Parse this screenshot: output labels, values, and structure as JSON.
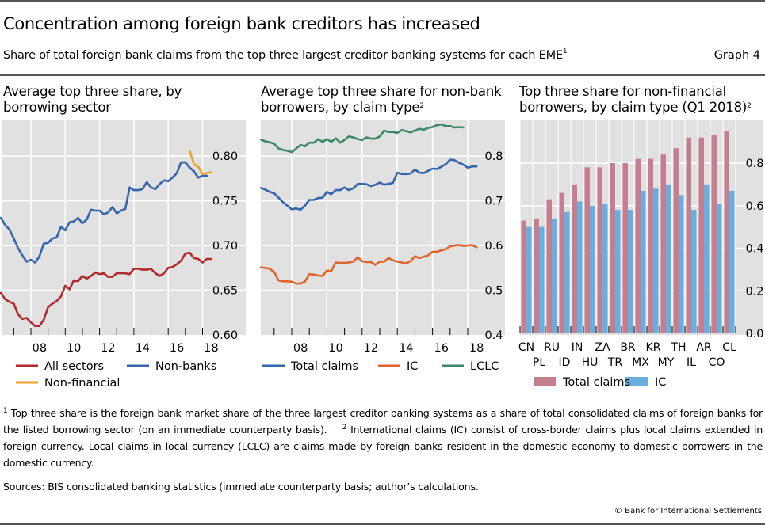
{
  "header": {
    "title": "Concentration among foreign bank creditors has increased",
    "subtitle": "Share of total foreign bank claims from the top three largest creditor banking systems for each EME",
    "subtitle_note": "1",
    "graph_number": "Graph 4"
  },
  "footnotes": {
    "note1_mark": "1",
    "note1": "Top three share is the foreign bank market share of the three largest creditor banking systems as a share of total consolidated claims of foreign banks for the listed borrowing sector (on an immediate counterparty basis).",
    "note2_mark": "2",
    "note2": "International claims (IC) consist of cross-border claims plus local claims extended in foreign currency. Local claims in local currency (LCLC) are claims made by foreign banks resident in the domestic economy to domestic borrowers in the domestic currency.",
    "sources": "Sources: BIS consolidated banking statistics (immediate counterparty basis; author’s calculations.",
    "copyright": "© Bank for International Settlements"
  },
  "colors": {
    "plot_bg": "#e1e1e1",
    "grid": "#ffffff",
    "red": "#b2292e",
    "blue": "#3565ad",
    "orange_yellow": "#eca125",
    "orange": "#e0642a",
    "green": "#3b8767",
    "bar_total": "#c47e8e",
    "bar_ic": "#6aaee0"
  },
  "chart_data": [
    {
      "type": "line",
      "title": "Average top three share, by borrowing sector",
      "x_start": 2006.25,
      "x_step": 0.25,
      "xlim": [
        2006.25,
        2018.75
      ],
      "x_ticklabels": [
        "08",
        "10",
        "12",
        "14",
        "16",
        "18"
      ],
      "x_tick_years": [
        2008,
        2010,
        2012,
        2014,
        2016,
        2018
      ],
      "ylim": [
        0.6,
        0.84
      ],
      "y_ticks": [
        0.6,
        0.65,
        0.7,
        0.75,
        0.8
      ],
      "y_ticklabels": [
        "0.60",
        "0.65",
        "0.70",
        "0.75",
        "0.80"
      ],
      "grid": true,
      "legend_position": "bottom",
      "series": [
        {
          "name": "All sectors",
          "color_key": "red",
          "start": 2006.25,
          "values": [
            0.647,
            0.64,
            0.637,
            0.635,
            0.623,
            0.618,
            0.619,
            0.614,
            0.61,
            0.61,
            0.617,
            0.631,
            0.635,
            0.638,
            0.643,
            0.655,
            0.651,
            0.661,
            0.66,
            0.666,
            0.663,
            0.666,
            0.67,
            0.668,
            0.669,
            0.665,
            0.665,
            0.669,
            0.669,
            0.669,
            0.668,
            0.674,
            0.674,
            0.673,
            0.673,
            0.674,
            0.669,
            0.666,
            0.669,
            0.675,
            0.676,
            0.679,
            0.683,
            0.691,
            0.692,
            0.686,
            0.685,
            0.681,
            0.685,
            0.685
          ]
        },
        {
          "name": "Non-banks",
          "color_key": "blue",
          "start": 2006.25,
          "values": [
            0.731,
            0.723,
            0.718,
            0.708,
            0.697,
            0.689,
            0.682,
            0.684,
            0.681,
            0.688,
            0.702,
            0.703,
            0.708,
            0.709,
            0.721,
            0.717,
            0.726,
            0.727,
            0.731,
            0.725,
            0.729,
            0.74,
            0.739,
            0.739,
            0.735,
            0.737,
            0.743,
            0.736,
            0.739,
            0.741,
            0.765,
            0.762,
            0.762,
            0.763,
            0.771,
            0.765,
            0.763,
            0.769,
            0.773,
            0.772,
            0.776,
            0.781,
            0.793,
            0.793,
            0.787,
            0.783,
            0.776,
            0.778,
            0.778
          ]
        },
        {
          "name": "Non-financial",
          "color_key": "orange_yellow",
          "start": 2017.25,
          "values": [
            0.806,
            0.791,
            0.788,
            0.78,
            0.781,
            0.782
          ]
        }
      ]
    },
    {
      "type": "line",
      "title": "Average top three share for non-bank borrowers, by claim type",
      "title_note": "2",
      "x_start": 2006.25,
      "x_step": 0.25,
      "xlim": [
        2006.25,
        2018.75
      ],
      "x_ticklabels": [
        "08",
        "10",
        "12",
        "14",
        "16",
        "18"
      ],
      "x_tick_years": [
        2008,
        2010,
        2012,
        2014,
        2016,
        2018
      ],
      "ylim": [
        0.4,
        0.88
      ],
      "y_ticks": [
        0.4,
        0.5,
        0.6,
        0.7,
        0.8
      ],
      "y_ticklabels": [
        "0.4",
        "0.5",
        "0.6",
        "0.7",
        "0.8"
      ],
      "grid": true,
      "legend_position": "bottom",
      "series": [
        {
          "name": "Total claims",
          "color_key": "blue",
          "start": 2006.25,
          "values": [
            0.729,
            0.725,
            0.72,
            0.717,
            0.707,
            0.697,
            0.689,
            0.681,
            0.683,
            0.68,
            0.689,
            0.702,
            0.702,
            0.706,
            0.707,
            0.72,
            0.715,
            0.724,
            0.724,
            0.73,
            0.724,
            0.728,
            0.738,
            0.738,
            0.737,
            0.733,
            0.736,
            0.741,
            0.736,
            0.738,
            0.74,
            0.763,
            0.76,
            0.76,
            0.761,
            0.77,
            0.763,
            0.762,
            0.767,
            0.772,
            0.771,
            0.776,
            0.782,
            0.792,
            0.791,
            0.785,
            0.781,
            0.774,
            0.777,
            0.777
          ]
        },
        {
          "name": "IC",
          "color_key": "orange",
          "start": 2006.25,
          "values": [
            0.551,
            0.55,
            0.548,
            0.541,
            0.522,
            0.52,
            0.52,
            0.519,
            0.515,
            0.515,
            0.519,
            0.536,
            0.535,
            0.533,
            0.532,
            0.544,
            0.543,
            0.562,
            0.561,
            0.561,
            0.562,
            0.564,
            0.574,
            0.565,
            0.563,
            0.563,
            0.557,
            0.564,
            0.564,
            0.572,
            0.567,
            0.564,
            0.562,
            0.56,
            0.565,
            0.576,
            0.572,
            0.575,
            0.578,
            0.586,
            0.586,
            0.589,
            0.592,
            0.598,
            0.6,
            0.601,
            0.599,
            0.6,
            0.601,
            0.596
          ]
        },
        {
          "name": "LCLC",
          "color_key": "green",
          "start": 2006.25,
          "values": [
            0.837,
            0.833,
            0.831,
            0.828,
            0.817,
            0.814,
            0.812,
            0.809,
            0.817,
            0.825,
            0.822,
            0.83,
            0.83,
            0.838,
            0.832,
            0.838,
            0.832,
            0.84,
            0.83,
            0.836,
            0.844,
            0.842,
            0.838,
            0.836,
            0.842,
            0.839,
            0.839,
            0.844,
            0.857,
            0.854,
            0.854,
            0.852,
            0.858,
            0.856,
            0.853,
            0.857,
            0.861,
            0.859,
            0.863,
            0.865,
            0.869,
            0.871,
            0.867,
            0.867,
            0.864,
            0.865,
            0.864
          ]
        }
      ]
    },
    {
      "type": "bar",
      "title": "Top three share for non-financial borrowers, by claim type (Q1 2018)",
      "title_note": "2",
      "categories": [
        "CN",
        "PL",
        "RU",
        "ID",
        "IN",
        "HU",
        "ZA",
        "TR",
        "BR",
        "MX",
        "KR",
        "MY",
        "TH",
        "IL",
        "AR",
        "CO",
        "CL"
      ],
      "ylim": [
        0.0,
        0.97
      ],
      "y_ticks": [
        0.0,
        0.2,
        0.4,
        0.6,
        0.8
      ],
      "y_ticklabels": [
        "0.0",
        "0.2",
        "0.4",
        "0.6",
        "0.8"
      ],
      "grid": true,
      "legend_position": "bottom",
      "series": [
        {
          "name": "Total claims",
          "color_key": "bar_total",
          "values": [
            0.53,
            0.54,
            0.63,
            0.66,
            0.7,
            0.78,
            0.78,
            0.8,
            0.8,
            0.82,
            0.82,
            0.84,
            0.87,
            0.92,
            0.92,
            0.93,
            0.95
          ]
        },
        {
          "name": "IC",
          "color_key": "bar_ic",
          "values": [
            0.5,
            0.5,
            0.54,
            0.57,
            0.62,
            0.6,
            0.61,
            0.58,
            0.58,
            0.67,
            0.68,
            0.7,
            0.65,
            0.58,
            0.7,
            0.61,
            0.67
          ]
        }
      ]
    }
  ]
}
